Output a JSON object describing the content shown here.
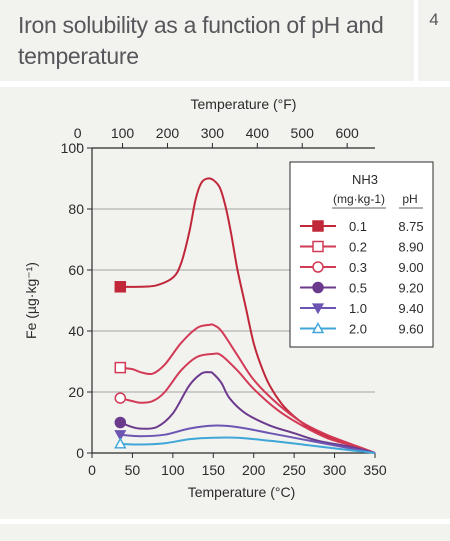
{
  "header": {
    "title": "Iron solubility as a function of pH and temperature",
    "figure_number": "4"
  },
  "colors": {
    "panel_bg": "#f2f2ef",
    "title_text": "#57575b",
    "red": "#c0283a",
    "pink": "#d23a55",
    "purple": "#6c3a8c",
    "blue": "#6d55b3",
    "cyan": "#3fa6d8"
  },
  "chart_data": {
    "type": "line",
    "xlabel": "Temperature (°C)",
    "x2label": "Temperature (°F)",
    "ylabel": "Fe (µg·kg⁻¹)",
    "xlim": [
      0,
      350
    ],
    "ylim": [
      0,
      100
    ],
    "x_ticks": [
      "0",
      "50",
      "100",
      "150",
      "200",
      "250",
      "300",
      "350"
    ],
    "x2_ticks": [
      "0",
      "100",
      "200",
      "300",
      "400",
      "500",
      "600"
    ],
    "y_ticks": [
      "0",
      "20",
      "40",
      "60",
      "80",
      "100"
    ],
    "gridlines_y": [
      20,
      40,
      60,
      80
    ],
    "legend": {
      "header_nh3": "NH3",
      "header_units": "(mg·kg-1)",
      "header_ph": "pH",
      "placement": "right"
    },
    "series": [
      {
        "name": "0.1",
        "ph": "8.75",
        "color": "#c0283a",
        "marker": "filled-square",
        "x": [
          35,
          60,
          80,
          100,
          110,
          120,
          128,
          135,
          143,
          150,
          158,
          165,
          172,
          180,
          190,
          200,
          210,
          220,
          235,
          250,
          270,
          290,
          310,
          330,
          350
        ],
        "y": [
          54.5,
          54.5,
          55,
          57.5,
          62,
          72,
          83,
          88.5,
          90,
          89.5,
          87,
          81,
          72,
          60,
          48,
          36,
          28,
          22,
          16,
          12,
          8,
          5.5,
          3.5,
          2,
          0
        ]
      },
      {
        "name": "0.2",
        "ph": "8.90",
        "color": "#d23a55",
        "marker": "open-square",
        "x": [
          35,
          50,
          60,
          75,
          90,
          110,
          130,
          145,
          150,
          160,
          180,
          200,
          230,
          260,
          290,
          320,
          350
        ],
        "y": [
          28,
          27.5,
          26.5,
          26,
          29,
          36,
          41,
          42,
          42,
          40,
          32,
          24,
          16,
          10,
          6,
          3,
          0
        ]
      },
      {
        "name": "0.3",
        "ph": "9.00",
        "color": "#d23a55",
        "marker": "open-circle",
        "x": [
          35,
          50,
          60,
          75,
          90,
          110,
          130,
          150,
          160,
          180,
          200,
          230,
          260,
          290,
          320,
          350
        ],
        "y": [
          18,
          17,
          16.5,
          17,
          20,
          27,
          31.5,
          32.5,
          32,
          27,
          21,
          14,
          9,
          5,
          2.5,
          0
        ]
      },
      {
        "name": "0.5",
        "ph": "9.20",
        "color": "#6c3a8c",
        "marker": "filled-circle",
        "x": [
          35,
          50,
          60,
          80,
          100,
          120,
          135,
          145,
          150,
          160,
          170,
          190,
          220,
          250,
          280,
          320,
          350
        ],
        "y": [
          10,
          8.5,
          8,
          8.5,
          13,
          22,
          26,
          26.5,
          26,
          23,
          18,
          13,
          9,
          6.5,
          4,
          2,
          0
        ]
      },
      {
        "name": "1.0",
        "ph": "9.40",
        "color": "#6d55b3",
        "marker": "filled-triangle-down",
        "x": [
          35,
          60,
          90,
          120,
          150,
          180,
          220,
          260,
          300,
          350
        ],
        "y": [
          6,
          5.5,
          6,
          8,
          9,
          8.5,
          6.5,
          4.5,
          2.5,
          0
        ]
      },
      {
        "name": "2.0",
        "ph": "9.60",
        "color": "#3fa6d8",
        "marker": "open-triangle-up",
        "x": [
          35,
          60,
          90,
          120,
          150,
          180,
          220,
          260,
          300,
          350
        ],
        "y": [
          3,
          2.8,
          3.2,
          4.5,
          5,
          5,
          4,
          2.8,
          1.5,
          0
        ]
      }
    ]
  }
}
